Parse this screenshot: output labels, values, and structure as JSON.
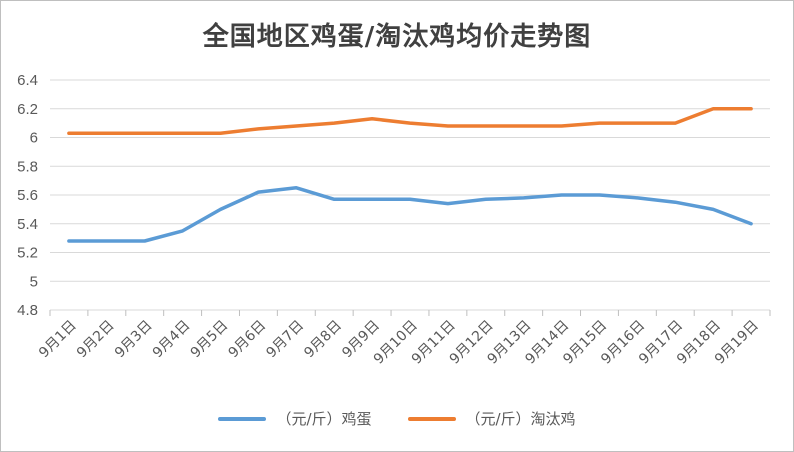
{
  "chart_data": {
    "type": "line",
    "title": "全国地区鸡蛋/淘汰鸡均价走势图",
    "categories": [
      "9月1日",
      "9月2日",
      "9月3日",
      "9月4日",
      "9月5日",
      "9月6日",
      "9月7日",
      "9月8日",
      "9月9日",
      "9月10日",
      "9月11日",
      "9月12日",
      "9月13日",
      "9月14日",
      "9月15日",
      "9月16日",
      "9月17日",
      "9月18日",
      "9月19日"
    ],
    "ylim": [
      4.8,
      6.4
    ],
    "yticks": [
      "4.8",
      "5",
      "5.2",
      "5.4",
      "5.6",
      "5.8",
      "6",
      "6.2",
      "6.4"
    ],
    "grid": true,
    "legend_position": "bottom",
    "series": [
      {
        "name": "（元/斤）鸡蛋",
        "color": "#5b9bd5",
        "values": [
          5.28,
          5.28,
          5.28,
          5.35,
          5.5,
          5.62,
          5.65,
          5.57,
          5.57,
          5.57,
          5.54,
          5.57,
          5.58,
          5.6,
          5.6,
          5.58,
          5.55,
          5.5,
          5.4
        ]
      },
      {
        "name": "（元/斤）淘汰鸡",
        "color": "#ed7d31",
        "values": [
          6.03,
          6.03,
          6.03,
          6.03,
          6.03,
          6.06,
          6.08,
          6.1,
          6.13,
          6.1,
          6.08,
          6.08,
          6.08,
          6.08,
          6.1,
          6.1,
          6.1,
          6.2,
          6.2
        ]
      }
    ]
  }
}
